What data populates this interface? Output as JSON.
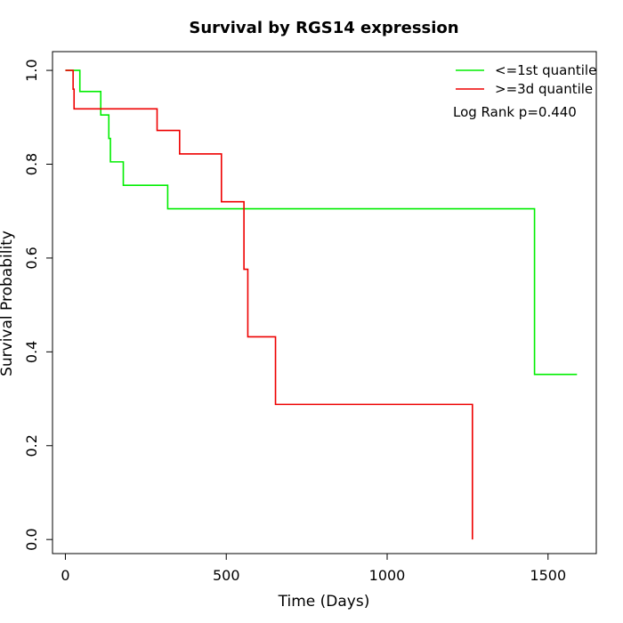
{
  "chart_data": {
    "type": "line",
    "title": "Survival by RGS14 expression",
    "xlabel": "Time (Days)",
    "ylabel": "Survival Probability",
    "xlim": [
      -40,
      1650
    ],
    "ylim": [
      -0.03,
      1.04
    ],
    "xticks": [
      0,
      500,
      1000,
      1500
    ],
    "yticks": [
      0.0,
      0.2,
      0.4,
      0.6,
      0.8,
      1.0
    ],
    "xtick_labels": [
      "0",
      "500",
      "1000",
      "1500"
    ],
    "ytick_labels": [
      "0.0",
      "0.2",
      "0.4",
      "0.6",
      "0.8",
      "1.0"
    ],
    "legend_position": "top-right",
    "annotation": "Log Rank p=0.440",
    "series": [
      {
        "name": "<=1st quantile",
        "color": "#00ee00",
        "step": true,
        "x": [
          0,
          45,
          110,
          135,
          140,
          180,
          318,
          1458,
          1590
        ],
        "y": [
          1.0,
          0.955,
          0.905,
          0.855,
          0.805,
          0.755,
          0.705,
          0.352,
          0.352
        ]
      },
      {
        "name": ">=3d quantile",
        "color": "#ee0000",
        "step": true,
        "x": [
          0,
          24,
          27,
          285,
          355,
          485,
          555,
          567,
          653,
          1265,
          1265
        ],
        "y": [
          1.0,
          0.96,
          0.918,
          0.872,
          0.822,
          0.72,
          0.576,
          0.432,
          0.288,
          0.288,
          0.0
        ]
      }
    ]
  }
}
